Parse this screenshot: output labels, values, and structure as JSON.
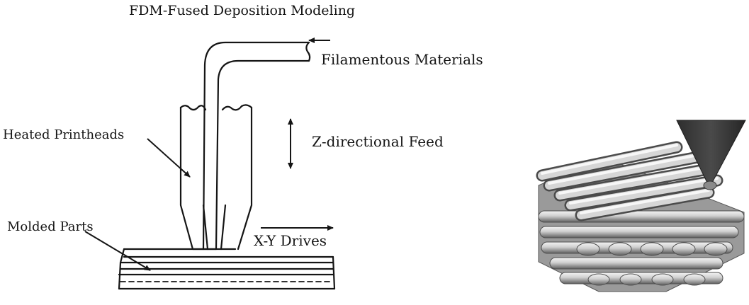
{
  "diagram": {
    "title": "FDM-Fused Deposition Modeling",
    "labels": {
      "filament": "Filamentous Materials",
      "printheads": "Heated Printheads",
      "z_feed": "Z-directional Feed",
      "molded_parts": "Molded Parts",
      "xy_drives": "X-Y Drives"
    }
  },
  "colors": {
    "line": "#151515",
    "nozzle": "#3a3a3a",
    "tube_light": "#d8d8d8",
    "tube_dark": "#6e6e6e"
  }
}
